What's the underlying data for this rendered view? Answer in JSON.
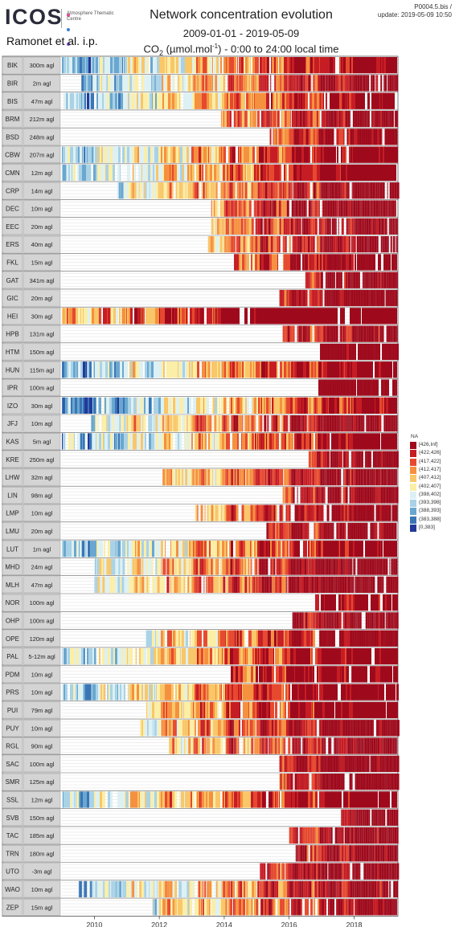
{
  "header": {
    "logo_text": "ICOS",
    "logo_sub": "Atmosphere Thematic Centre",
    "author": "Ramonet et al. i.p.",
    "title": "Network concentration evolution",
    "date_range": "2009-01-01 - 2019-05-09",
    "variable_prefix": "CO",
    "variable_sub": "2",
    "variable_open": " (µmol.mol",
    "variable_sup": "-1",
    "variable_rest": ") - 0:00 to 24:00 local time",
    "product_id": "P0004.5.bis /",
    "update": "update: 2019-05-09 10:50"
  },
  "legend": {
    "title": "NA",
    "items": [
      {
        "label": "[426,Inf]",
        "color": "#9e0a1c"
      },
      {
        "label": "(422,426]",
        "color": "#c61d24"
      },
      {
        "label": "(417,422]",
        "color": "#e6492f"
      },
      {
        "label": "(412,417]",
        "color": "#f5903f"
      },
      {
        "label": "(407,412]",
        "color": "#f9c668"
      },
      {
        "label": "(402,407]",
        "color": "#fbeea6"
      },
      {
        "label": "(398,402]",
        "color": "#ddf0f3"
      },
      {
        "label": "(393,398]",
        "color": "#a9d2e6"
      },
      {
        "label": "(388,393]",
        "color": "#6aa7d0"
      },
      {
        "label": "(383,388]",
        "color": "#3b75b5"
      },
      {
        "label": "[0,383]",
        "color": "#22399a"
      }
    ]
  },
  "chart_data": {
    "type": "heatmap",
    "x_start": "2009-01-01",
    "x_end": "2019-05-09",
    "x_ticks": [
      "2010",
      "2012",
      "2014",
      "2016",
      "2018"
    ],
    "stations": [
      {
        "code": "BIK",
        "height": "300m agl",
        "start": 2009.0
      },
      {
        "code": "BIR",
        "height": "2m agl",
        "start": 2009.6
      },
      {
        "code": "BIS",
        "height": "47m agl",
        "start": 2009.0
      },
      {
        "code": "BRM",
        "height": "212m agl",
        "start": 2013.9
      },
      {
        "code": "BSD",
        "height": "248m agl",
        "start": 2015.4
      },
      {
        "code": "CBW",
        "height": "207m agl",
        "start": 2009.0
      },
      {
        "code": "CMN",
        "height": "12m agl",
        "start": 2009.0
      },
      {
        "code": "CRP",
        "height": "14m agl",
        "start": 2010.7
      },
      {
        "code": "DEC",
        "height": "10m agl",
        "start": 2013.6
      },
      {
        "code": "EEC",
        "height": "20m agl",
        "start": 2013.6
      },
      {
        "code": "ERS",
        "height": "40m agl",
        "start": 2013.5
      },
      {
        "code": "FKL",
        "height": "15m agl",
        "start": 2014.3
      },
      {
        "code": "GAT",
        "height": "341m agl",
        "start": 2016.5
      },
      {
        "code": "GIC",
        "height": "20m agl",
        "start": 2015.7
      },
      {
        "code": "HEI",
        "height": "30m agl",
        "start": 2009.0
      },
      {
        "code": "HPB",
        "height": "131m agl",
        "start": 2015.8
      },
      {
        "code": "HTM",
        "height": "150m agl",
        "start": 2016.9
      },
      {
        "code": "HUN",
        "height": "115m agl",
        "start": 2009.0
      },
      {
        "code": "IPR",
        "height": "100m agl",
        "start": 2016.9
      },
      {
        "code": "IZO",
        "height": "30m agl",
        "start": 2009.0
      },
      {
        "code": "JFJ",
        "height": "10m agl",
        "start": 2009.9
      },
      {
        "code": "KAS",
        "height": "5m agl",
        "start": 2009.0
      },
      {
        "code": "KRE",
        "height": "250m agl",
        "start": 2016.6
      },
      {
        "code": "LHW",
        "height": "32m agl",
        "start": 2012.1
      },
      {
        "code": "LIN",
        "height": "98m agl",
        "start": 2015.8
      },
      {
        "code": "LMP",
        "height": "10m agl",
        "start": 2013.0
      },
      {
        "code": "LMU",
        "height": "20m agl",
        "start": 2015.3
      },
      {
        "code": "LUT",
        "height": "1m agl",
        "start": 2009.0
      },
      {
        "code": "MHD",
        "height": "24m agl",
        "start": 2010.0
      },
      {
        "code": "MLH",
        "height": "47m agl",
        "start": 2010.0
      },
      {
        "code": "NOR",
        "height": "100m agl",
        "start": 2016.8
      },
      {
        "code": "OHP",
        "height": "100m agl",
        "start": 2016.1
      },
      {
        "code": "OPE",
        "height": "120m agl",
        "start": 2011.5
      },
      {
        "code": "PAL",
        "height": "5-12m agl",
        "start": 2009.0
      },
      {
        "code": "PDM",
        "height": "10m agl",
        "start": 2014.2
      },
      {
        "code": "PRS",
        "height": "10m agl",
        "start": 2009.0
      },
      {
        "code": "PUI",
        "height": "79m agl",
        "start": 2011.6
      },
      {
        "code": "PUY",
        "height": "10m agl",
        "start": 2011.4
      },
      {
        "code": "RGL",
        "height": "90m agl",
        "start": 2012.3
      },
      {
        "code": "SAC",
        "height": "100m agl",
        "start": 2015.7
      },
      {
        "code": "SMR",
        "height": "125m agl",
        "start": 2015.7
      },
      {
        "code": "SSL",
        "height": "12m agl",
        "start": 2009.0
      },
      {
        "code": "SVB",
        "height": "150m agl",
        "start": 2017.6
      },
      {
        "code": "TAC",
        "height": "185m agl",
        "start": 2016.0
      },
      {
        "code": "TRN",
        "height": "180m agl",
        "start": 2016.2
      },
      {
        "code": "UTO",
        "height": "-3m agl",
        "start": 2015.1
      },
      {
        "code": "WAO",
        "height": "10m agl",
        "start": 2009.5
      },
      {
        "code": "ZEP",
        "height": "15m agl",
        "start": 2011.8
      }
    ]
  }
}
